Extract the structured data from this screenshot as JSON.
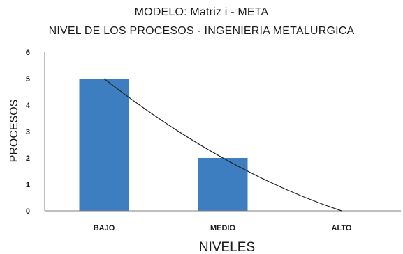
{
  "chart_data": {
    "type": "bar",
    "title": "MODELO: Matriz  i - META",
    "subtitle": "NIVEL DE LOS PROCESOS  - INGENIERIA METALURGICA",
    "xlabel": "NIVELES",
    "ylabel": "PROCESOS",
    "categories": [
      "BAJO",
      "MEDIO",
      "ALTO"
    ],
    "values": [
      5,
      2,
      0
    ],
    "ylim": [
      0,
      6
    ],
    "yticks": [
      0,
      1,
      2,
      3,
      4,
      5,
      6
    ],
    "grid": false,
    "trendline": {
      "type": "polynomial",
      "values": [
        5,
        2,
        0
      ]
    },
    "colors": {
      "bar": "#3d7ec0",
      "trendline": "#222222",
      "axis": "#7f7f7f"
    }
  }
}
